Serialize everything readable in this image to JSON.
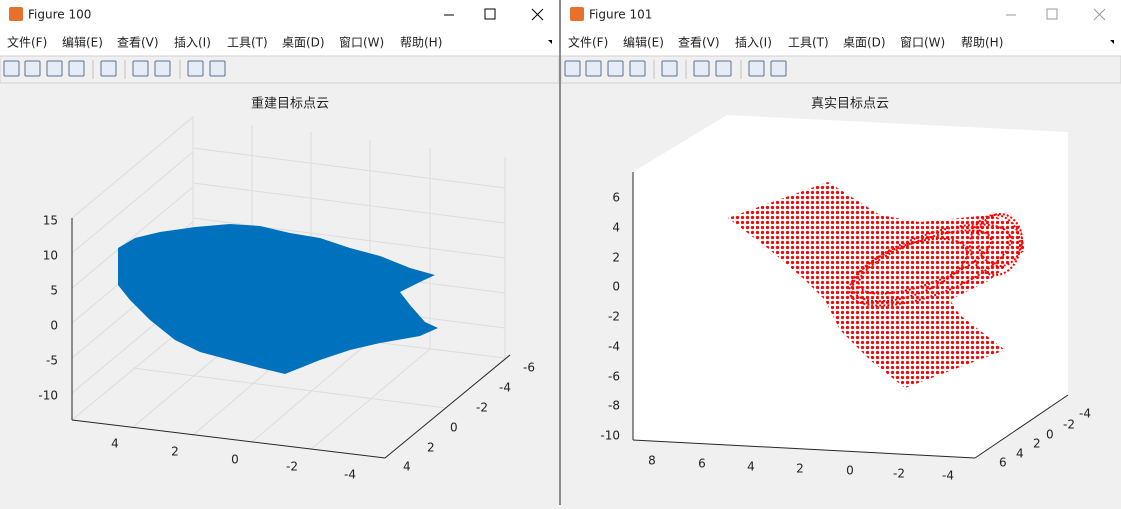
{
  "windows": [
    {
      "title": "Figure 100",
      "menu": [
        "文件(F)",
        "编辑(E)",
        "查看(V)",
        "插入(I)",
        "工具(T)",
        "桌面(D)",
        "窗口(W)",
        "帮助(H)"
      ],
      "axes": {
        "title": "重建目标点云",
        "zticks": [
          15,
          10,
          5,
          0,
          -5,
          -10
        ],
        "xticks": [
          4,
          2,
          0,
          -2,
          -4
        ],
        "yticks": [
          4,
          2,
          0,
          -2,
          -4,
          -6
        ]
      }
    },
    {
      "title": "Figure 101",
      "menu": [
        "文件(F)",
        "编辑(E)",
        "查看(V)",
        "插入(I)",
        "工具(T)",
        "桌面(D)",
        "窗口(W)",
        "帮助(H)"
      ],
      "axes": {
        "title": "真实目标点云",
        "zticks": [
          6,
          4,
          2,
          0,
          -2,
          -4,
          -6,
          -8,
          -10
        ],
        "xticks": [
          8,
          6,
          4,
          2,
          0,
          -2,
          -4
        ],
        "yticks": [
          6,
          4,
          2,
          0,
          -2,
          -4
        ]
      }
    }
  ]
}
